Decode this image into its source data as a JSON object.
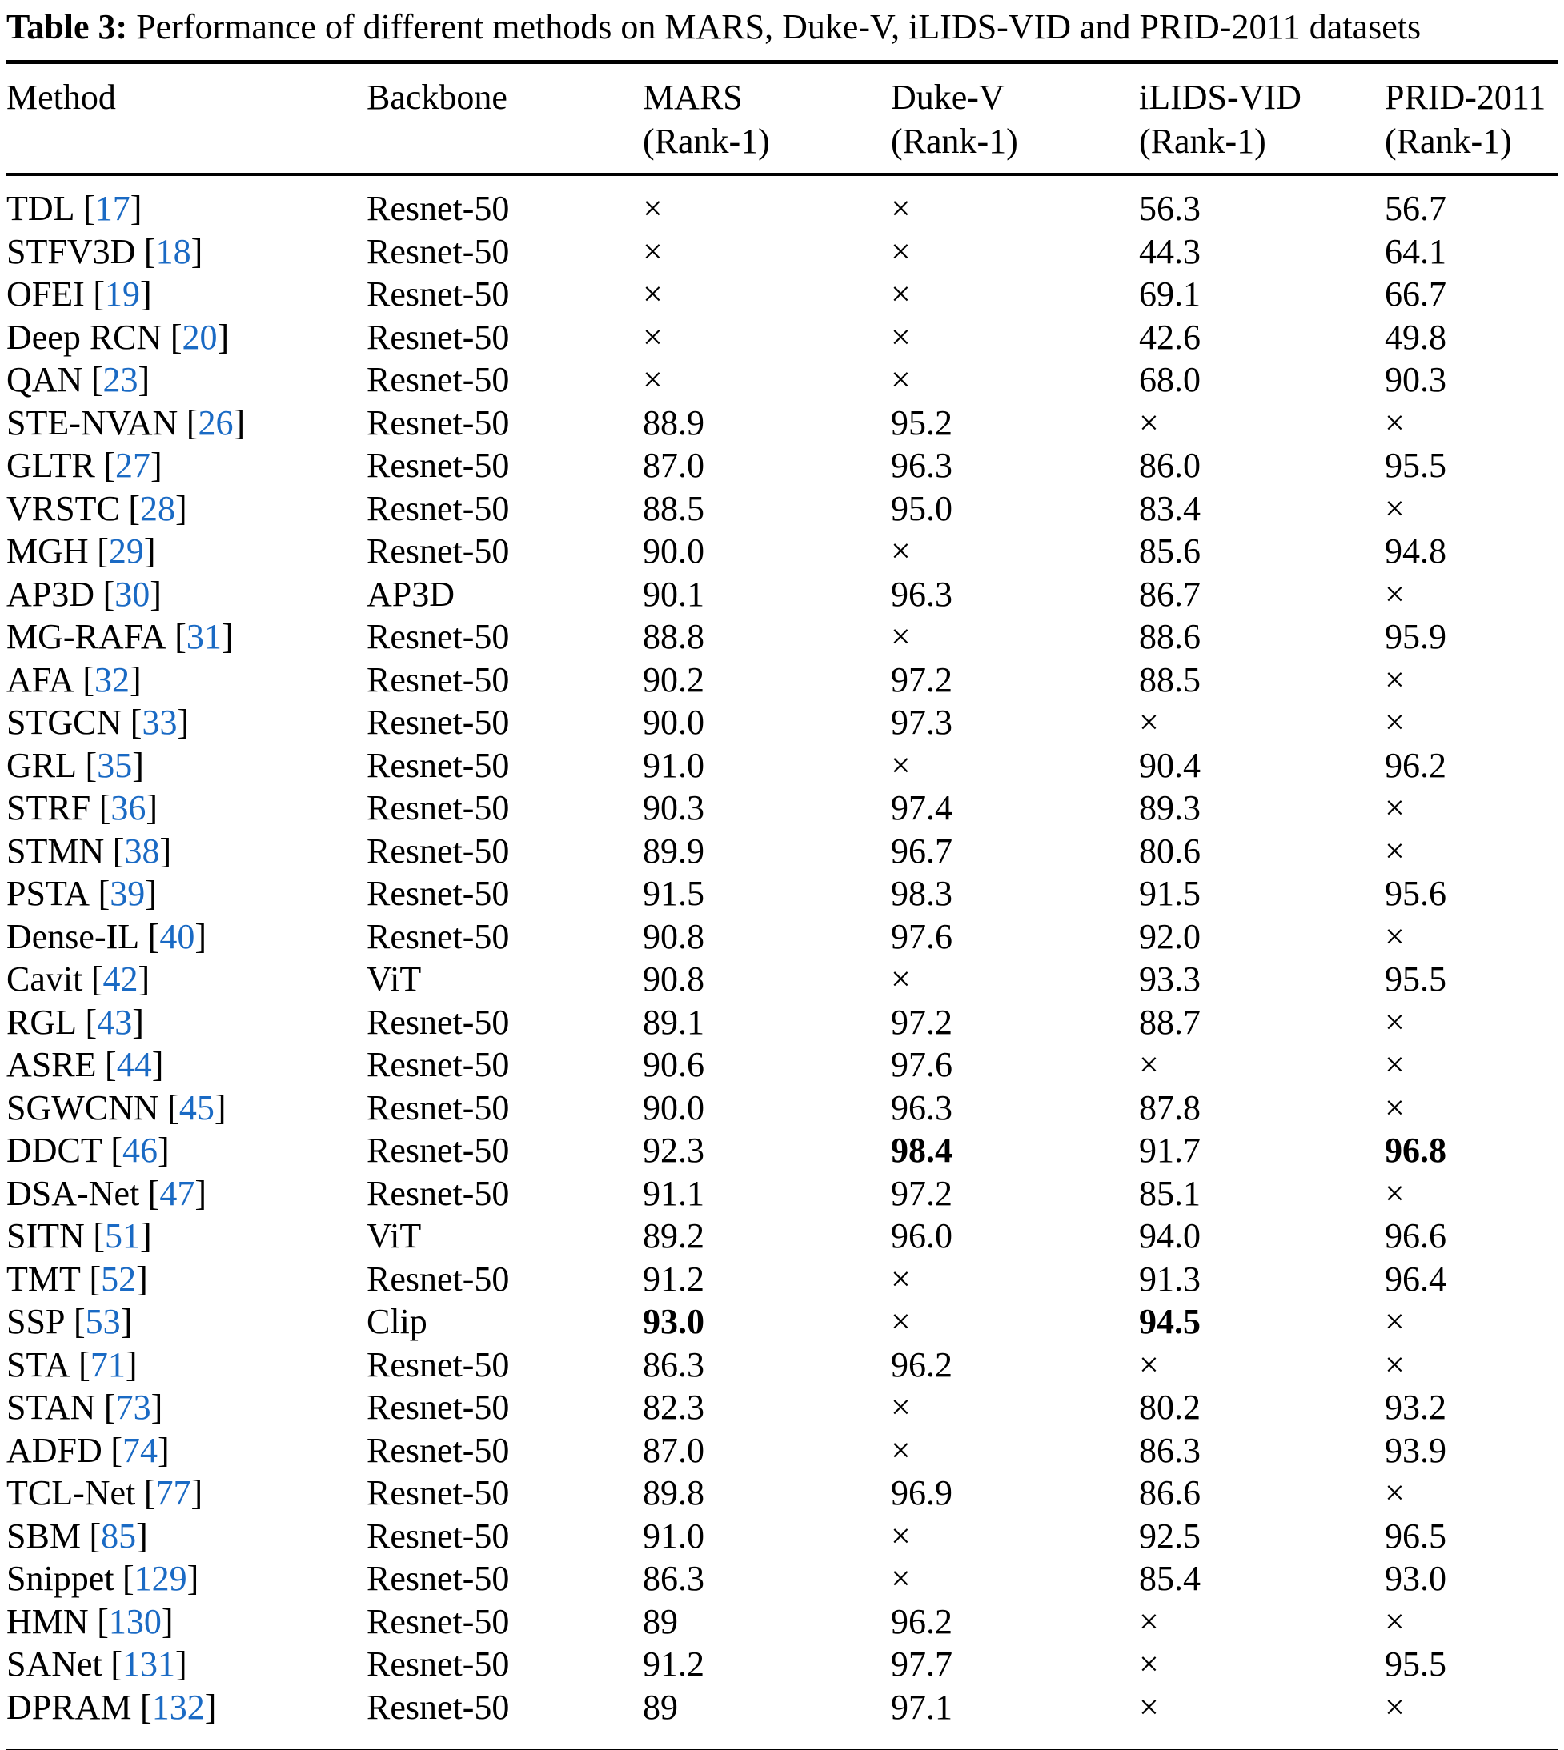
{
  "accent_color": "#1A6AC4",
  "caption": {
    "label": "Table 3:",
    "text": " Performance of different methods on MARS, Duke-V, iLIDS-VID and PRID-2011 datasets"
  },
  "punct": {
    "open": "[",
    "close": "]"
  },
  "missing_marker": "×",
  "table": {
    "columns": [
      {
        "label": "Method",
        "sub": ""
      },
      {
        "label": "Backbone",
        "sub": ""
      },
      {
        "label": "MARS",
        "sub": "(Rank-1)"
      },
      {
        "label": "Duke-V",
        "sub": "(Rank-1)"
      },
      {
        "label": "iLIDS-VID",
        "sub": "(Rank-1)"
      },
      {
        "label": "PRID-2011",
        "sub": "(Rank-1)"
      }
    ],
    "rows": [
      {
        "method": "TDL",
        "ref": "17",
        "backbone": "Resnet-50",
        "mars": "×",
        "duke": "×",
        "ilids": "56.3",
        "prid": "56.7",
        "bold": []
      },
      {
        "method": "STFV3D",
        "ref": "18",
        "backbone": "Resnet-50",
        "mars": "×",
        "duke": "×",
        "ilids": "44.3",
        "prid": "64.1",
        "bold": []
      },
      {
        "method": "OFEI",
        "ref": "19",
        "backbone": "Resnet-50",
        "mars": "×",
        "duke": "×",
        "ilids": "69.1",
        "prid": "66.7",
        "bold": []
      },
      {
        "method": "Deep RCN",
        "ref": "20",
        "backbone": "Resnet-50",
        "mars": "×",
        "duke": "×",
        "ilids": "42.6",
        "prid": "49.8",
        "bold": []
      },
      {
        "method": "QAN",
        "ref": "23",
        "backbone": "Resnet-50",
        "mars": "×",
        "duke": "×",
        "ilids": "68.0",
        "prid": "90.3",
        "bold": []
      },
      {
        "method": "STE-NVAN",
        "ref": "26",
        "backbone": "Resnet-50",
        "mars": "88.9",
        "duke": "95.2",
        "ilids": "×",
        "prid": "×",
        "bold": []
      },
      {
        "method": "GLTR",
        "ref": "27",
        "backbone": "Resnet-50",
        "mars": "87.0",
        "duke": "96.3",
        "ilids": "86.0",
        "prid": "95.5",
        "bold": []
      },
      {
        "method": "VRSTC",
        "ref": "28",
        "backbone": "Resnet-50",
        "mars": "88.5",
        "duke": "95.0",
        "ilids": "83.4",
        "prid": "×",
        "bold": []
      },
      {
        "method": "MGH",
        "ref": "29",
        "backbone": "Resnet-50",
        "mars": "90.0",
        "duke": "×",
        "ilids": "85.6",
        "prid": "94.8",
        "bold": []
      },
      {
        "method": "AP3D",
        "ref": "30",
        "backbone": "AP3D",
        "mars": "90.1",
        "duke": "96.3",
        "ilids": "86.7",
        "prid": "×",
        "bold": []
      },
      {
        "method": "MG-RAFA",
        "ref": "31",
        "backbone": "Resnet-50",
        "mars": "88.8",
        "duke": "×",
        "ilids": "88.6",
        "prid": "95.9",
        "bold": []
      },
      {
        "method": "AFA",
        "ref": "32",
        "backbone": "Resnet-50",
        "mars": "90.2",
        "duke": "97.2",
        "ilids": "88.5",
        "prid": "×",
        "bold": []
      },
      {
        "method": "STGCN",
        "ref": "33",
        "backbone": "Resnet-50",
        "mars": "90.0",
        "duke": "97.3",
        "ilids": "×",
        "prid": "×",
        "bold": []
      },
      {
        "method": "GRL",
        "ref": "35",
        "backbone": "Resnet-50",
        "mars": "91.0",
        "duke": "×",
        "ilids": "90.4",
        "prid": "96.2",
        "bold": []
      },
      {
        "method": "STRF",
        "ref": "36",
        "backbone": "Resnet-50",
        "mars": "90.3",
        "duke": "97.4",
        "ilids": "89.3",
        "prid": "×",
        "bold": []
      },
      {
        "method": "STMN",
        "ref": "38",
        "backbone": "Resnet-50",
        "mars": "89.9",
        "duke": "96.7",
        "ilids": "80.6",
        "prid": "×",
        "bold": []
      },
      {
        "method": "PSTA",
        "ref": "39",
        "backbone": "Resnet-50",
        "mars": "91.5",
        "duke": "98.3",
        "ilids": "91.5",
        "prid": "95.6",
        "bold": []
      },
      {
        "method": "Dense-IL",
        "ref": "40",
        "backbone": "Resnet-50",
        "mars": "90.8",
        "duke": "97.6",
        "ilids": "92.0",
        "prid": "×",
        "bold": []
      },
      {
        "method": "Cavit",
        "ref": "42",
        "backbone": "ViT",
        "mars": "90.8",
        "duke": "×",
        "ilids": "93.3",
        "prid": "95.5",
        "bold": []
      },
      {
        "method": "RGL",
        "ref": "43",
        "backbone": "Resnet-50",
        "mars": "89.1",
        "duke": "97.2",
        "ilids": "88.7",
        "prid": "×",
        "bold": []
      },
      {
        "method": "ASRE",
        "ref": "44",
        "backbone": "Resnet-50",
        "mars": "90.6",
        "duke": "97.6",
        "ilids": "×",
        "prid": "×",
        "bold": []
      },
      {
        "method": "SGWCNN",
        "ref": "45",
        "backbone": "Resnet-50",
        "mars": "90.0",
        "duke": "96.3",
        "ilids": "87.8",
        "prid": "×",
        "bold": []
      },
      {
        "method": "DDCT",
        "ref": "46",
        "backbone": "Resnet-50",
        "mars": "92.3",
        "duke": "98.4",
        "ilids": "91.7",
        "prid": "96.8",
        "bold": [
          "duke",
          "prid"
        ]
      },
      {
        "method": "DSA-Net",
        "ref": "47",
        "backbone": "Resnet-50",
        "mars": "91.1",
        "duke": "97.2",
        "ilids": "85.1",
        "prid": "×",
        "bold": []
      },
      {
        "method": "SITN",
        "ref": "51",
        "backbone": "ViT",
        "mars": "89.2",
        "duke": "96.0",
        "ilids": "94.0",
        "prid": "96.6",
        "bold": []
      },
      {
        "method": "TMT",
        "ref": "52",
        "backbone": "Resnet-50",
        "mars": "91.2",
        "duke": "×",
        "ilids": "91.3",
        "prid": "96.4",
        "bold": []
      },
      {
        "method": "SSP",
        "ref": "53",
        "backbone": "Clip",
        "mars": "93.0",
        "duke": "×",
        "ilids": "94.5",
        "prid": "×",
        "bold": [
          "mars",
          "ilids"
        ]
      },
      {
        "method": "STA",
        "ref": "71",
        "backbone": "Resnet-50",
        "mars": "86.3",
        "duke": "96.2",
        "ilids": "×",
        "prid": "×",
        "bold": []
      },
      {
        "method": "STAN",
        "ref": "73",
        "backbone": "Resnet-50",
        "mars": "82.3",
        "duke": "×",
        "ilids": "80.2",
        "prid": "93.2",
        "bold": []
      },
      {
        "method": "ADFD",
        "ref": "74",
        "backbone": "Resnet-50",
        "mars": "87.0",
        "duke": "×",
        "ilids": "86.3",
        "prid": "93.9",
        "bold": []
      },
      {
        "method": "TCL-Net",
        "ref": "77",
        "backbone": "Resnet-50",
        "mars": "89.8",
        "duke": "96.9",
        "ilids": "86.6",
        "prid": "×",
        "bold": []
      },
      {
        "method": "SBM",
        "ref": "85",
        "backbone": "Resnet-50",
        "mars": "91.0",
        "duke": "×",
        "ilids": "92.5",
        "prid": "96.5",
        "bold": []
      },
      {
        "method": "Snippet",
        "ref": "129",
        "backbone": "Resnet-50",
        "mars": "86.3",
        "duke": "×",
        "ilids": "85.4",
        "prid": "93.0",
        "bold": []
      },
      {
        "method": "HMN",
        "ref": "130",
        "backbone": "Resnet-50",
        "mars": "89",
        "duke": "96.2",
        "ilids": "×",
        "prid": "×",
        "bold": []
      },
      {
        "method": "SANet",
        "ref": "131",
        "backbone": "Resnet-50",
        "mars": "91.2",
        "duke": "97.7",
        "ilids": "×",
        "prid": "95.5",
        "bold": []
      },
      {
        "method": "DPRAM",
        "ref": "132",
        "backbone": "Resnet-50",
        "mars": "89",
        "duke": "97.1",
        "ilids": "×",
        "prid": "×",
        "bold": []
      }
    ]
  }
}
